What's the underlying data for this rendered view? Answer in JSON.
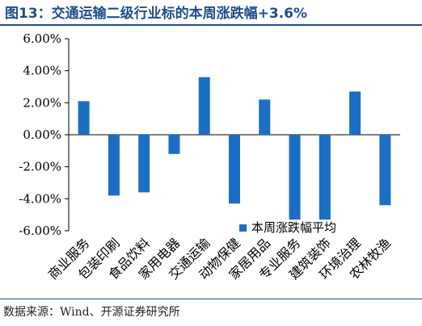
{
  "title": "图13：交通运输二级行业标的本周涨跌幅+3.6%",
  "source": "数据来源：Wind、开源证券研究所",
  "colors": {
    "bar": "#1a6fc4",
    "axis": "#000000",
    "title": "#1f4e8c"
  },
  "chart_data": {
    "type": "bar",
    "categories": [
      "商业服务",
      "包装印刷",
      "食品饮料",
      "家用电器",
      "交通运输",
      "动物保健",
      "家居用品",
      "专业服务",
      "建筑装饰",
      "环境治理",
      "农林牧渔"
    ],
    "series": [
      {
        "name": "本周涨跌幅平均",
        "values": [
          2.1,
          -3.8,
          -3.6,
          -1.2,
          3.6,
          -4.3,
          2.2,
          -5.3,
          -5.3,
          2.7,
          -4.4
        ]
      }
    ],
    "yticks": [
      "6.00%",
      "4.00%",
      "2.00%",
      "0.00%",
      "-2.00%",
      "-4.00%",
      "-6.00%"
    ],
    "ylim": [
      -6,
      6
    ],
    "ystep": 2,
    "grid": false,
    "legend_position": "bottom-right"
  }
}
